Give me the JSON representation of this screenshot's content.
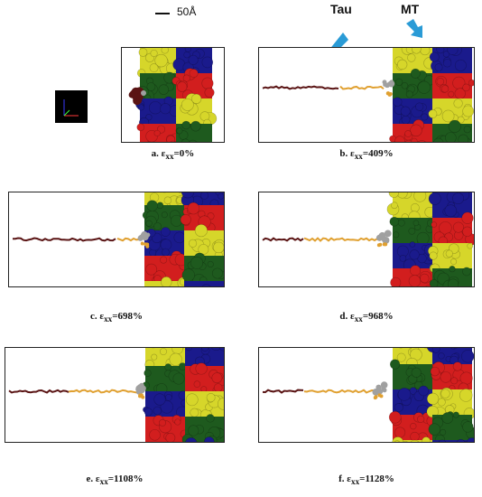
{
  "scale_bar": {
    "label": "50Å"
  },
  "labels": {
    "tau": "Tau",
    "mt": "MT"
  },
  "colors": {
    "yellow": "#d6d62a",
    "green": "#1e5a1e",
    "blue": "#1a1a8c",
    "red": "#d21e1e",
    "tau_dark": "#5a1414",
    "tau_orange": "#e0a030",
    "tau_gray": "#a0a0a0",
    "arrow": "#2a9bd6"
  },
  "panels": [
    {
      "id": "a",
      "caption_prefix": "a. ε",
      "caption_sub": "xx",
      "caption_value": "=0%"
    },
    {
      "id": "b",
      "caption_prefix": "b. ε",
      "caption_sub": "xx",
      "caption_value": "=409%"
    },
    {
      "id": "c",
      "caption_prefix": "c. ε",
      "caption_sub": "xx",
      "caption_value": "=698%"
    },
    {
      "id": "d",
      "caption_prefix": "d. ε",
      "caption_sub": "xx",
      "caption_value": "=968%"
    },
    {
      "id": "e",
      "caption_prefix": "e. ε",
      "caption_sub": "xx",
      "caption_value": "=1108%"
    },
    {
      "id": "f",
      "caption_prefix": "f. ε",
      "caption_sub": "xx",
      "caption_value": "=1128%"
    }
  ]
}
